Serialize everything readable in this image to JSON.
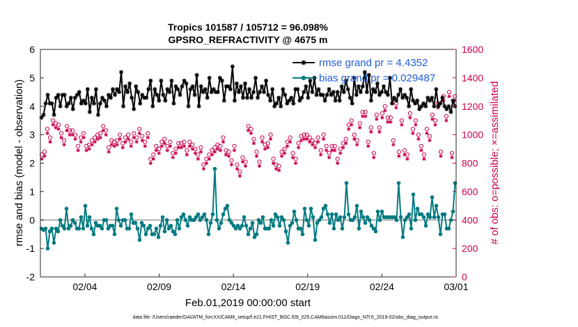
{
  "chart_data": {
    "type": "line",
    "title": "Tropics 101587 / 105712 = 96.098%",
    "subtitle": "GPSRO_REFRACTIVITY @ 4675 m",
    "xlabel": "Feb.01,2019 00:00:00 start",
    "ylabel": "rmse and bias (model - observation)",
    "ylabel_right": "# of obs: o=possible; ×=assimilated",
    "xlim": [
      0,
      28
    ],
    "ylim": [
      -2,
      6
    ],
    "ylim_right": [
      0,
      1600
    ],
    "x_ticks": [
      {
        "x": 3,
        "label": "02/04"
      },
      {
        "x": 8,
        "label": "02/09"
      },
      {
        "x": 13,
        "label": "02/14"
      },
      {
        "x": 18,
        "label": "02/19"
      },
      {
        "x": 23,
        "label": "02/24"
      },
      {
        "x": 28,
        "label": "03/01"
      }
    ],
    "y_ticks": [
      -2,
      -1,
      0,
      1,
      2,
      3,
      4,
      5,
      6
    ],
    "y_ticks_right": [
      0,
      200,
      400,
      600,
      800,
      1000,
      1200,
      1400,
      1600
    ],
    "footer": "data file: /Users/raeder/DAI/ATM_forcXX/CAM6_setup/f.e21.FHIST_BGC.f09_025.CAM6assim.011/Diags_NTrS_2019-02/obs_diag_output.nc",
    "series": [
      {
        "name": "rmse grand pr = 4.4352",
        "color": "#000000",
        "marker": "asterisk",
        "axis": "left",
        "values": [
          3.6,
          3.7,
          4.1,
          4.4,
          4.1,
          4.1,
          3.7,
          4.3,
          4.4,
          4.0,
          4.4,
          4.4,
          4.0,
          4.1,
          4.3,
          3.9,
          4.3,
          4.4,
          4.5,
          4.1,
          4.2,
          4.1,
          4.6,
          3.8,
          4.3,
          4.1,
          4.6,
          3.7,
          4.1,
          4.3,
          4.2,
          4.0,
          4.4,
          4.3,
          4.6,
          4.4,
          4.6,
          4.5,
          5.2,
          4.0,
          4.7,
          4.5,
          4.8,
          4.3,
          3.9,
          4.7,
          4.5,
          4.1,
          4.4,
          4.3,
          4.3,
          4.6,
          4.9,
          4.0,
          4.6,
          4.4,
          4.2,
          4.9,
          4.4,
          4.2,
          4.6,
          4.5,
          4.9,
          4.1,
          4.7,
          4.6,
          4.4,
          4.7,
          4.9,
          4.8,
          4.0,
          4.6,
          4.7,
          4.4,
          5.1,
          4.0,
          4.7,
          4.5,
          4.6,
          4.3,
          5.0,
          4.5,
          4.6,
          4.5,
          4.5,
          5.0,
          4.9,
          4.2,
          4.7,
          4.7,
          4.6,
          5.4,
          4.2,
          4.8,
          4.5,
          4.7,
          4.3,
          4.8,
          4.3,
          4.6,
          4.3,
          4.5,
          5.0,
          4.3,
          4.5,
          4.7,
          4.5,
          4.9,
          4.4,
          4.2,
          4.6,
          4.0,
          4.1,
          4.3,
          4.0,
          4.6,
          4.4,
          4.1,
          4.2,
          4.3,
          4.1,
          4.6,
          4.6,
          4.2,
          4.3,
          4.5,
          4.7,
          4.3,
          4.9,
          4.5,
          5.0,
          4.4,
          4.6,
          4.4,
          4.4,
          4.2,
          4.4,
          4.6,
          4.4,
          4.5,
          4.2,
          4.5,
          4.2,
          4.7,
          4.5,
          4.9,
          4.6,
          4.3,
          4.1,
          5.0,
          4.4,
          4.7,
          4.5,
          4.7,
          5.2,
          4.5,
          5.1,
          4.2,
          4.6,
          4.5,
          4.8,
          4.4,
          4.5,
          4.7,
          4.5,
          4.4,
          5.0,
          4.1,
          4.3,
          4.2,
          4.4,
          4.6,
          4.3,
          4.4,
          4.3,
          4.0,
          4.6,
          4.2,
          4.1,
          4.2,
          3.9,
          4.0,
          4.1,
          4.0,
          4.3,
          4.2,
          4.3,
          4.0,
          4.6,
          4.0,
          4.1,
          4.3,
          4.0,
          3.9,
          4.0,
          3.8,
          4.2,
          4.0
        ]
      },
      {
        "name": "bias grand pr = 0.029487",
        "color": "#007a80",
        "marker": "dot",
        "axis": "left",
        "values": [
          -0.3,
          -0.35,
          -0.3,
          -1.0,
          -0.4,
          -0.3,
          -0.8,
          -0.3,
          -0.4,
          0.0,
          -0.2,
          -0.3,
          0.4,
          -0.3,
          -0.2,
          0.0,
          -0.1,
          -0.3,
          -0.3,
          0.1,
          -0.3,
          0.5,
          -0.2,
          0.1,
          -0.3,
          -0.5,
          -0.1,
          -0.2,
          -0.2,
          -0.3,
          0.0,
          0.0,
          -0.3,
          -0.2,
          -0.2,
          -0.5,
          0.4,
          0.0,
          -0.2,
          0.0,
          0.0,
          -0.3,
          -0.3,
          0.2,
          -0.1,
          -0.1,
          -0.3,
          -0.7,
          -0.1,
          -0.2,
          -0.5,
          -0.3,
          -0.2,
          -0.5,
          -0.5,
          -0.3,
          -0.6,
          -0.2,
          0.1,
          -0.4,
          0.0,
          -0.3,
          -0.2,
          -0.4,
          -0.5,
          0.0,
          -0.3,
          0.1,
          0.2,
          0.0,
          -0.2,
          0.1,
          0.0,
          0.0,
          0.1,
          0.2,
          0.0,
          0.1,
          0.2,
          0.0,
          -0.5,
          -0.1,
          0.2,
          1.8,
          0.0,
          -0.3,
          -0.1,
          0.2,
          0.4,
          0.5,
          0.0,
          -0.1,
          -0.2,
          -0.3,
          -0.2,
          -0.3,
          -0.2,
          0.1,
          -0.2,
          -0.5,
          -0.3,
          -0.1,
          -0.6,
          -0.5,
          0.0,
          -0.1,
          0.1,
          -0.3,
          -0.3,
          -0.3,
          0.0,
          -0.2,
          0.2,
          0.1,
          -0.2,
          0.1,
          0.0,
          -0.4,
          -0.8,
          -0.2,
          -0.1,
          0.3,
          0.0,
          -0.3,
          -0.3,
          -0.5,
          0.4,
          0.0,
          -0.2,
          0.4,
          0.1,
          -0.7,
          -0.1,
          0.0,
          0.1,
          0.4,
          0.5,
          0.2,
          -0.1,
          0.2,
          -0.3,
          0.2,
          0.0,
          0.1,
          -0.3,
          0.1,
          1.3,
          0.2,
          0.0,
          0.0,
          0.1,
          0.5,
          -0.3,
          0.3,
          0.1,
          -0.1,
          0.1,
          0.0,
          -0.2,
          -0.3,
          -0.4,
          0.3,
          0.0,
          0.3,
          0.1,
          0.1,
          0.1,
          0.1,
          0.1,
          0.1,
          0.0,
          1.3,
          0.1,
          -0.6,
          0.0,
          0.1,
          0.2,
          -0.3,
          0.9,
          0.0,
          0.4,
          0.2,
          0.2,
          0.1,
          -0.2,
          0.2,
          0.1,
          0.8,
          0.1,
          0.5,
          0.1,
          -0.5,
          0.2,
          0.2,
          -0.3,
          -0.3,
          0.0,
          0.3,
          1.3
        ]
      },
      {
        "name": "possible",
        "color": "#c8004f",
        "marker": "circle",
        "axis": "right",
        "show_in_legend": false,
        "values": [
          860,
          880,
          1040,
          980,
          1100,
          1080,
          1070,
          1010,
          960,
          1060,
          1030,
          1030,
          1000,
          920,
          980,
          1010,
          920,
          930,
          960,
          980,
          1000,
          1010,
          1060,
          1030,
          910,
          960,
          950,
          960,
          1000,
          940,
          980,
          1000,
          950,
          1010,
          980,
          1040,
          990,
          950,
          1010,
          830,
          860,
          920,
          900,
          950,
          970,
          920,
          950,
          870,
          900,
          940,
          940,
          950,
          890,
          950,
          930,
          900,
          860,
          910,
          790,
          830,
          860,
          890,
          910,
          930,
          920,
          980,
          890,
          880,
          820,
          920,
          790,
          740,
          840,
          810,
          1060,
          1040,
          970,
          880,
          810,
          980,
          930,
          940,
          1000,
          830,
          790,
          780,
          880,
          900,
          950,
          980,
          870,
          830,
          940,
          990,
          1000,
          1000,
          980,
          960,
          940,
          980,
          890,
          1000,
          920,
          870,
          920,
          920,
          830,
          900,
          940,
          970,
          1070,
          1100,
          1000,
          960,
          1080,
          1160,
          1160,
          950,
          1050,
          870,
          1140,
          1050,
          1150,
          1200,
          1120,
          1120,
          960,
          1220,
          880,
          1100,
          890,
          860,
          1150,
          1040,
          1100,
          1000,
          920,
          860,
          1040,
          990,
          1140,
          1100,
          1220,
          880,
          1270,
          1130,
          1300,
          870,
          1270
        ]
      },
      {
        "name": "assimilated",
        "color": "#c8004f",
        "marker": "x",
        "axis": "right",
        "show_in_legend": false,
        "values": [
          830,
          850,
          1010,
          950,
          1070,
          1050,
          1040,
          980,
          930,
          1030,
          1000,
          1000,
          970,
          890,
          950,
          980,
          890,
          900,
          930,
          950,
          970,
          980,
          1030,
          1000,
          880,
          930,
          920,
          930,
          970,
          910,
          950,
          970,
          920,
          980,
          950,
          1010,
          960,
          920,
          980,
          800,
          830,
          890,
          870,
          920,
          940,
          890,
          920,
          840,
          870,
          910,
          910,
          920,
          860,
          920,
          900,
          870,
          830,
          880,
          760,
          800,
          830,
          860,
          880,
          900,
          890,
          950,
          860,
          850,
          790,
          890,
          760,
          710,
          810,
          780,
          1030,
          1010,
          940,
          850,
          780,
          950,
          900,
          910,
          970,
          800,
          760,
          750,
          850,
          870,
          920,
          950,
          840,
          800,
          910,
          960,
          970,
          970,
          950,
          930,
          910,
          950,
          860,
          970,
          890,
          840,
          890,
          890,
          800,
          870,
          910,
          940,
          1040,
          1070,
          970,
          930,
          1050,
          1130,
          1130,
          920,
          1020,
          840,
          1110,
          1020,
          1120,
          1170,
          1090,
          1090,
          930,
          1190,
          850,
          1070,
          860,
          830,
          1120,
          1010,
          1070,
          970,
          890,
          830,
          1010,
          960,
          1110,
          1070,
          1190,
          850,
          1240,
          1100,
          1270,
          840,
          1240
        ]
      }
    ]
  }
}
